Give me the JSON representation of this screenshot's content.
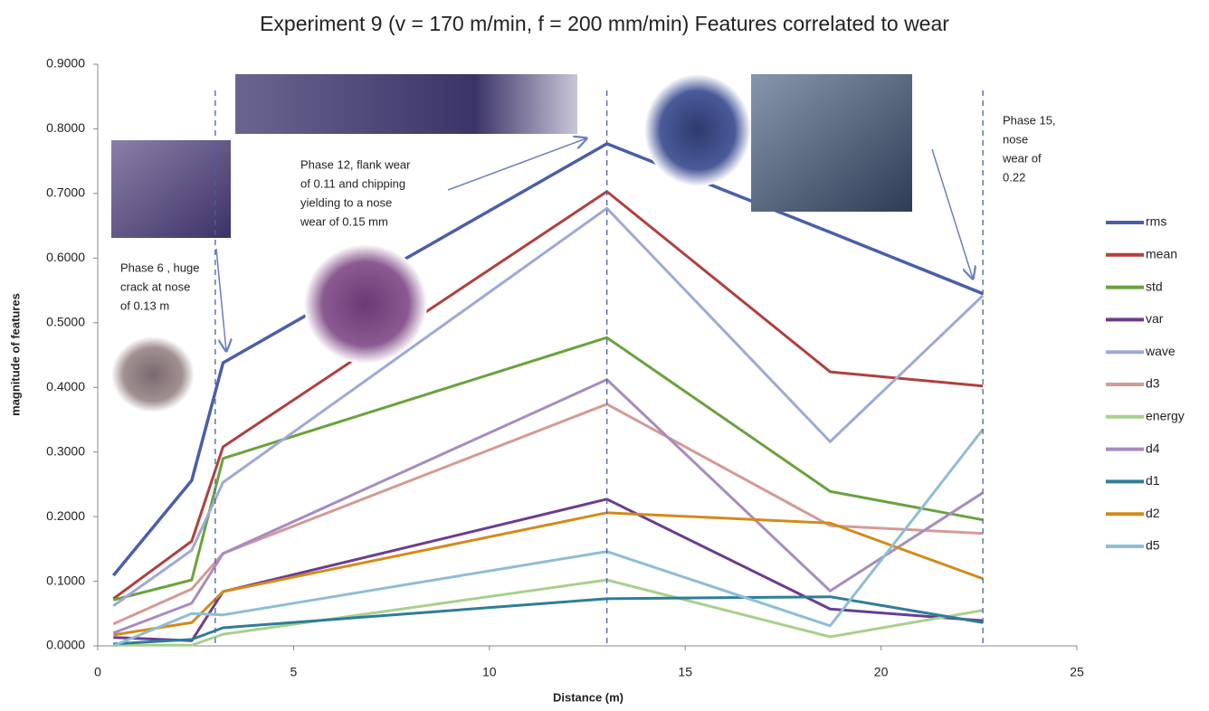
{
  "chart_data": {
    "type": "line",
    "title": "Experiment 9 (v = 170 m/min, f = 200 mm/min) Features correlated to wear",
    "x_label": "Distance (m)",
    "y_label": "magnitude of features",
    "x": [
      0.4,
      2.4,
      3.2,
      13,
      18.7,
      22.6
    ],
    "xlim": [
      0,
      25
    ],
    "xticks": [
      0,
      5,
      10,
      15,
      20,
      25
    ],
    "ylim": [
      0,
      0.9
    ],
    "yticks": [
      {
        "value": 0,
        "label": "0.0000"
      },
      {
        "value": 0.1,
        "label": "0.1000"
      },
      {
        "value": 0.2,
        "label": "0.2000"
      },
      {
        "value": 0.3,
        "label": "0.3000"
      },
      {
        "value": 0.4,
        "label": "0.4000"
      },
      {
        "value": 0.5,
        "label": "0.5000"
      },
      {
        "value": 0.6,
        "label": "0.6000"
      },
      {
        "value": 0.7,
        "label": "0.7000"
      },
      {
        "value": 0.8,
        "label": "0.8000"
      },
      {
        "value": 0.9,
        "label": "0.9000"
      }
    ],
    "grid": false,
    "legend": "right",
    "series": [
      {
        "name": "rms",
        "color": "#4a5fa8",
        "values": [
          0.109,
          0.256,
          0.438,
          0.777,
          0.64,
          0.545
        ]
      },
      {
        "name": "mean",
        "color": "#b0403d",
        "values": [
          0.073,
          0.162,
          0.308,
          0.703,
          0.424,
          0.402
        ]
      },
      {
        "name": "std",
        "color": "#6aa23f",
        "values": [
          0.071,
          0.102,
          0.29,
          0.477,
          0.239,
          0.195
        ]
      },
      {
        "name": "var",
        "color": "#6a3d8f",
        "values": [
          0.013,
          0.008,
          0.084,
          0.227,
          0.057,
          0.039
        ]
      },
      {
        "name": "wave",
        "color": "#9ea9d6",
        "values": [
          0.062,
          0.148,
          0.253,
          0.677,
          0.316,
          0.542
        ]
      },
      {
        "name": "d3",
        "color": "#d49a95",
        "values": [
          0.034,
          0.088,
          0.143,
          0.374,
          0.186,
          0.174
        ]
      },
      {
        "name": "energy",
        "color": "#a8d08d",
        "values": [
          0.001,
          0.001,
          0.018,
          0.102,
          0.014,
          0.055
        ]
      },
      {
        "name": "d4",
        "color": "#a68cc0",
        "values": [
          0.02,
          0.066,
          0.143,
          0.412,
          0.085,
          0.237
        ]
      },
      {
        "name": "d1",
        "color": "#2e7d98",
        "values": [
          0.003,
          0.01,
          0.028,
          0.073,
          0.076,
          0.036
        ]
      },
      {
        "name": "d2",
        "color": "#d48a1a",
        "values": [
          0.017,
          0.036,
          0.084,
          0.206,
          0.19,
          0.104
        ]
      },
      {
        "name": "d5",
        "color": "#8fbdd3",
        "values": [
          0.0,
          0.05,
          0.048,
          0.146,
          0.031,
          0.335
        ]
      }
    ],
    "reference_lines": [
      3,
      13,
      22.6
    ],
    "annotations": [
      {
        "lines": [
          "Phase 6 , huge",
          "crack at nose",
          "of 0.13 m"
        ]
      },
      {
        "lines": [
          "Phase 12, flank wear",
          "of 0.11 and chipping",
          "yielding to a nose",
          "wear of 0.15 mm"
        ]
      },
      {
        "lines": [
          "Phase 15,",
          "nose",
          "wear of",
          "0.22"
        ]
      }
    ]
  }
}
